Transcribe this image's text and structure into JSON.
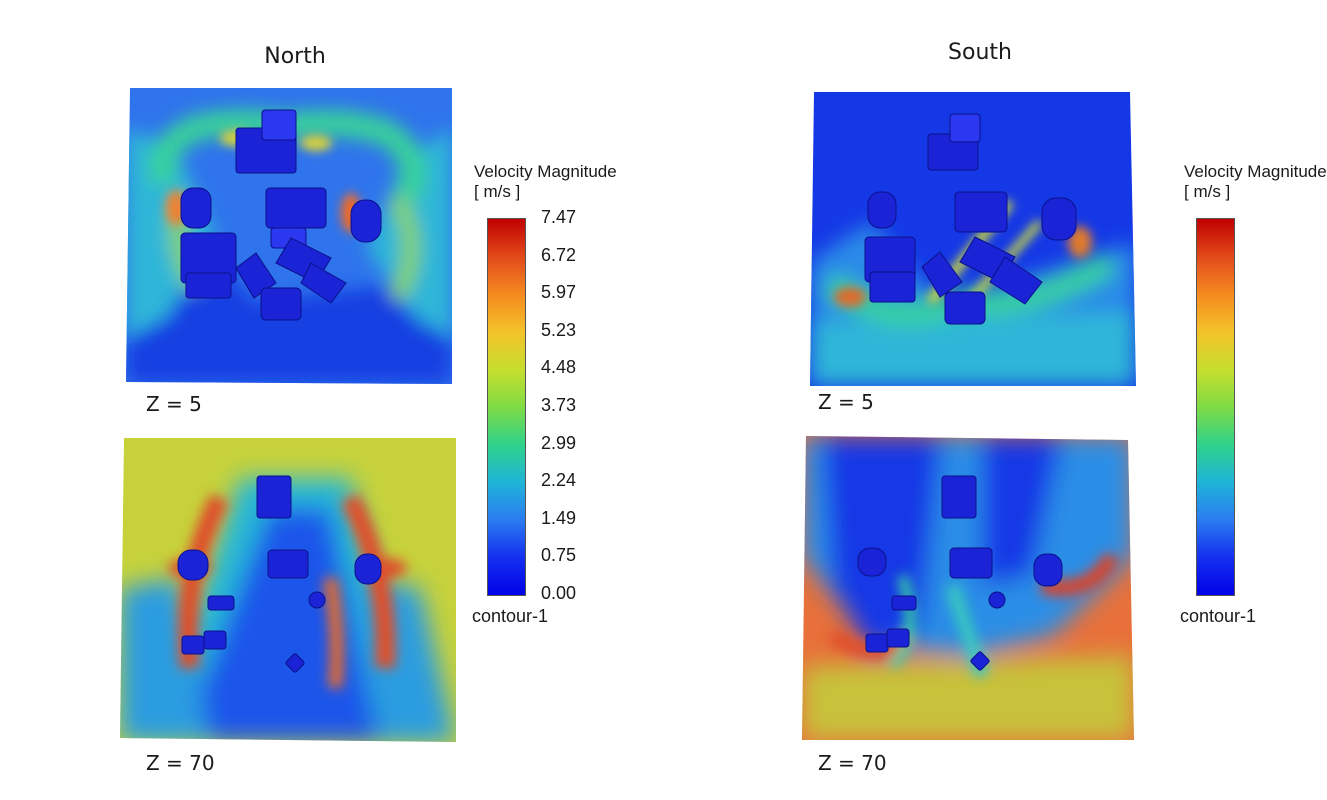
{
  "columns": {
    "north": {
      "title": "North",
      "z_low": "Z = 5",
      "z_high": "Z = 70"
    },
    "south": {
      "title": "South",
      "z_low": "Z = 5",
      "z_high": "Z = 70"
    }
  },
  "legend": {
    "title_line1": "Velocity Magnitude",
    "title_line2": "[ m/s ]",
    "ticks": [
      "7.47",
      "6.72",
      "5.97",
      "5.23",
      "4.48",
      "3.73",
      "2.99",
      "2.24",
      "1.49",
      "0.75",
      "0.00"
    ],
    "footer": "contour-1",
    "min": 0.0,
    "max": 7.47,
    "colors": [
      "#c00000",
      "#e24a1a",
      "#f58a20",
      "#f3c229",
      "#c8de2e",
      "#7fdc45",
      "#2fd28a",
      "#1fb5d8",
      "#2a7cf0",
      "#1430f0",
      "#0000e8"
    ]
  },
  "legend_clipped": {
    "title_line1": "Velocity Magnitude",
    "title_line2": "[ m/s ]",
    "footer": "contour-1"
  },
  "colors": {
    "building": "#1a24d6",
    "building_top": "#2b38f0",
    "low_speed": "#1538e6",
    "mid_speed": "#27c9c3",
    "high_speed": "#e0502a",
    "ambient_high": "#c7d23b"
  }
}
